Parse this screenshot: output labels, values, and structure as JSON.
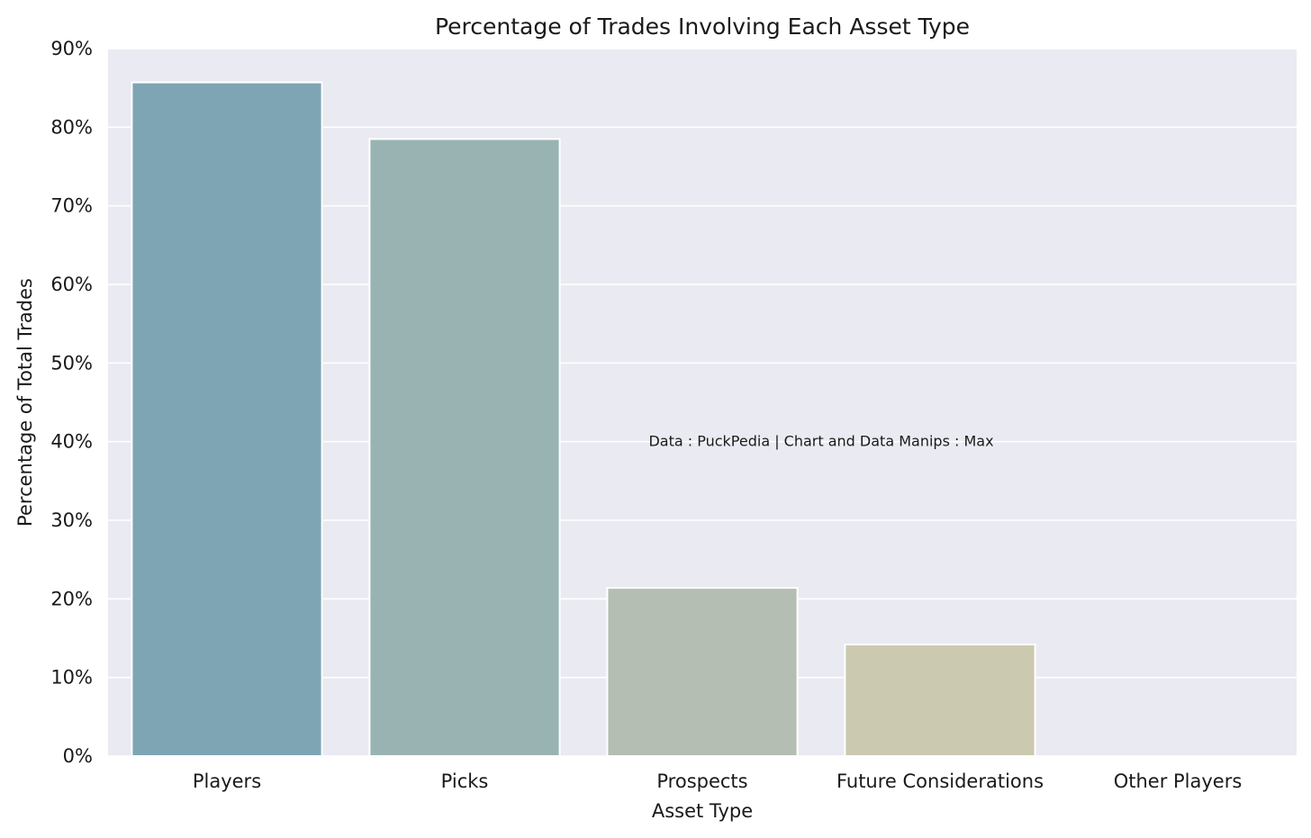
{
  "chart_data": {
    "type": "bar",
    "title": "Percentage of Trades Involving Each Asset Type",
    "xlabel": "Asset Type",
    "ylabel": "Percentage of Total Trades",
    "categories": [
      "Players",
      "Picks",
      "Prospects",
      "Future Considerations",
      "Other Players"
    ],
    "values": [
      85.7,
      78.5,
      21.4,
      14.2,
      0
    ],
    "ylim": [
      0,
      90
    ],
    "yticks": [
      0,
      10,
      20,
      30,
      40,
      50,
      60,
      70,
      80,
      90
    ],
    "ytick_labels": [
      "0%",
      "10%",
      "20%",
      "30%",
      "40%",
      "50%",
      "60%",
      "70%",
      "80%",
      "90%"
    ],
    "grid": true,
    "annotation": {
      "text": "Data : PuckPedia | Chart and Data Manips : Max",
      "x_category_index": 2.5,
      "y": 40
    },
    "colors": {
      "plot_background": "#eaeaf2",
      "grid": "#ffffff",
      "bars": [
        "#7ea5b4",
        "#99b3b3",
        "#b4beb2",
        "#cbcab0",
        "#dcd6ae"
      ]
    }
  }
}
